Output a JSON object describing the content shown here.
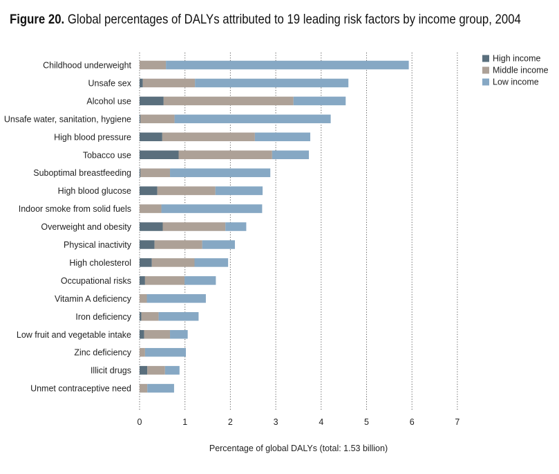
{
  "figure": {
    "number": "Figure 20.",
    "caption": "Global percentages of DALYs attributed to 19 leading risk factors by income group, 2004"
  },
  "chart_data": {
    "type": "bar",
    "orientation": "horizontal",
    "stacked": true,
    "title": "Figure 20. Global percentages of DALYs attributed to 19 leading risk factors by income group, 2004",
    "xlabel": "Percentage of global DALYs (total: 1.53 billion)",
    "ylabel": "",
    "xlim": [
      0,
      7
    ],
    "xticks": [
      "0",
      "1",
      "2",
      "3",
      "4",
      "5",
      "6",
      "7"
    ],
    "grid": "vertical dotted",
    "legend_position": "top-right",
    "colors": {
      "High income": "#5a6f7d",
      "Middle income": "#ada197",
      "Low income": "#86a8c4"
    },
    "categories": [
      "Childhood underweight",
      "Unsafe sex",
      "Alcohol use",
      "Unsafe water, sanitation, hygiene",
      "High blood pressure",
      "Tobacco use",
      "Suboptimal breastfeeding",
      "High blood glucose",
      "Indoor smoke from solid fuels",
      "Overweight and obesity",
      "Physical inactivity",
      "High cholesterol",
      "Occupational risks",
      "Vitamin A deficiency",
      "Iron deficiency",
      "Low fruit and vegetable intake",
      "Zinc deficiency",
      "Illicit drugs",
      "Unmet contraceptive need"
    ],
    "series": [
      {
        "name": "High income",
        "values": [
          0.0,
          0.07,
          0.53,
          0.02,
          0.5,
          0.86,
          0.02,
          0.39,
          0.0,
          0.51,
          0.33,
          0.27,
          0.12,
          0.0,
          0.04,
          0.1,
          0.0,
          0.17,
          0.0
        ]
      },
      {
        "name": "Middle income",
        "values": [
          0.58,
          1.15,
          2.86,
          0.75,
          2.04,
          2.06,
          0.65,
          1.28,
          0.48,
          1.38,
          1.05,
          0.94,
          0.87,
          0.16,
          0.38,
          0.57,
          0.12,
          0.39,
          0.17
        ]
      },
      {
        "name": "Low income",
        "values": [
          5.35,
          3.38,
          1.15,
          3.44,
          1.22,
          0.81,
          2.21,
          1.04,
          2.22,
          0.46,
          0.72,
          0.74,
          0.69,
          1.3,
          0.88,
          0.39,
          0.9,
          0.32,
          0.59
        ]
      }
    ]
  }
}
